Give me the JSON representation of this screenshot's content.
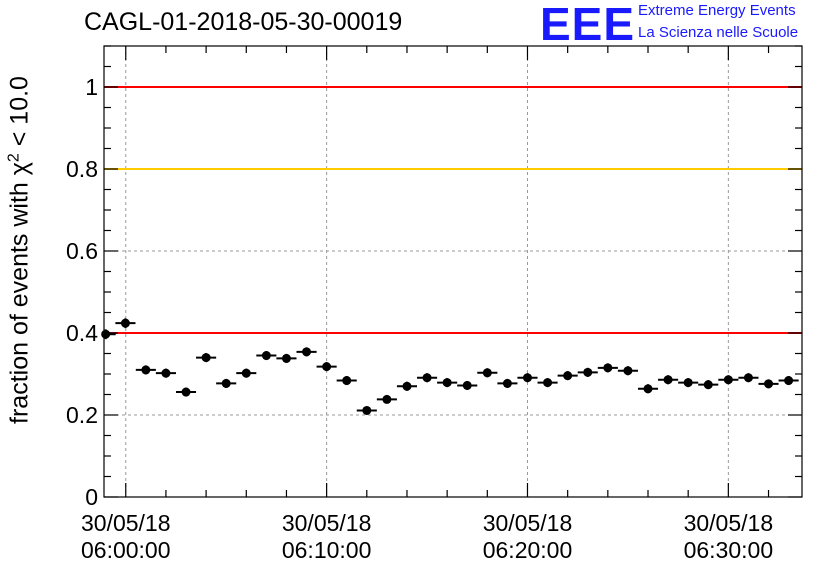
{
  "figure": {
    "title": "CAGL-01-2018-05-30-00019",
    "logo": {
      "mark": "EEE",
      "line1": "Extreme Energy Events",
      "line2": "La Scienza nelle Scuole"
    }
  },
  "chart_data": {
    "type": "scatter",
    "ylabel_prefix": "fraction of events with ",
    "ylabel_symbol": "χ",
    "ylabel_exp": "2",
    "ylabel_suffix": " < 10.0",
    "xlabel": "",
    "ylim": [
      0,
      1.1
    ],
    "xlim": [
      "30/05/18 05:58:55",
      "30/05/18 06:33:40"
    ],
    "grid": true,
    "yticks": [
      0,
      0.2,
      0.4,
      0.6,
      0.8,
      1
    ],
    "ytick_labels": [
      "0",
      "0.2",
      "0.4",
      "0.6",
      "0.8",
      "1"
    ],
    "xticks": [
      {
        "label_line1": "30/05/18",
        "label_line2": "06:00:00",
        "time": "06:00:00"
      },
      {
        "label_line1": "30/05/18",
        "label_line2": "06:10:00",
        "time": "06:10:00"
      },
      {
        "label_line1": "30/05/18",
        "label_line2": "06:20:00",
        "time": "06:20:00"
      },
      {
        "label_line1": "30/05/18",
        "label_line2": "06:30:00",
        "time": "06:30:00"
      }
    ],
    "reference_lines": [
      {
        "y": 1.0,
        "color": "#ff0000"
      },
      {
        "y": 0.8,
        "color": "#ffcc00"
      },
      {
        "y": 0.4,
        "color": "#ff0000"
      }
    ],
    "marker_color": "#000000",
    "points": [
      {
        "t": "05:59:00",
        "y": 0.397,
        "err": 0.012
      },
      {
        "t": "05:59:59",
        "y": 0.424,
        "err": 0.012
      },
      {
        "t": "06:01:00",
        "y": 0.31,
        "err": 0.011
      },
      {
        "t": "06:02:00",
        "y": 0.302,
        "err": 0.011
      },
      {
        "t": "06:03:00",
        "y": 0.256,
        "err": 0.011
      },
      {
        "t": "06:04:00",
        "y": 0.34,
        "err": 0.011
      },
      {
        "t": "06:05:00",
        "y": 0.277,
        "err": 0.011
      },
      {
        "t": "06:06:00",
        "y": 0.302,
        "err": 0.011
      },
      {
        "t": "06:07:00",
        "y": 0.345,
        "err": 0.011
      },
      {
        "t": "06:08:00",
        "y": 0.338,
        "err": 0.011
      },
      {
        "t": "06:09:00",
        "y": 0.354,
        "err": 0.011
      },
      {
        "t": "06:10:00",
        "y": 0.318,
        "err": 0.011
      },
      {
        "t": "06:11:00",
        "y": 0.284,
        "err": 0.011
      },
      {
        "t": "06:12:00",
        "y": 0.211,
        "err": 0.01
      },
      {
        "t": "06:13:00",
        "y": 0.238,
        "err": 0.01
      },
      {
        "t": "06:14:00",
        "y": 0.27,
        "err": 0.011
      },
      {
        "t": "06:15:00",
        "y": 0.291,
        "err": 0.011
      },
      {
        "t": "06:16:00",
        "y": 0.279,
        "err": 0.011
      },
      {
        "t": "06:17:00",
        "y": 0.272,
        "err": 0.011
      },
      {
        "t": "06:18:00",
        "y": 0.303,
        "err": 0.011
      },
      {
        "t": "06:19:00",
        "y": 0.277,
        "err": 0.011
      },
      {
        "t": "06:20:00",
        "y": 0.291,
        "err": 0.011
      },
      {
        "t": "06:21:00",
        "y": 0.279,
        "err": 0.011
      },
      {
        "t": "06:22:00",
        "y": 0.296,
        "err": 0.011
      },
      {
        "t": "06:23:00",
        "y": 0.304,
        "err": 0.011
      },
      {
        "t": "06:24:00",
        "y": 0.315,
        "err": 0.011
      },
      {
        "t": "06:25:00",
        "y": 0.308,
        "err": 0.011
      },
      {
        "t": "06:26:00",
        "y": 0.264,
        "err": 0.011
      },
      {
        "t": "06:27:00",
        "y": 0.286,
        "err": 0.011
      },
      {
        "t": "06:28:00",
        "y": 0.279,
        "err": 0.011
      },
      {
        "t": "06:29:00",
        "y": 0.274,
        "err": 0.011
      },
      {
        "t": "06:30:00",
        "y": 0.286,
        "err": 0.011
      },
      {
        "t": "06:31:00",
        "y": 0.291,
        "err": 0.011
      },
      {
        "t": "06:32:00",
        "y": 0.276,
        "err": 0.011
      },
      {
        "t": "06:33:00",
        "y": 0.284,
        "err": 0.011
      }
    ]
  }
}
